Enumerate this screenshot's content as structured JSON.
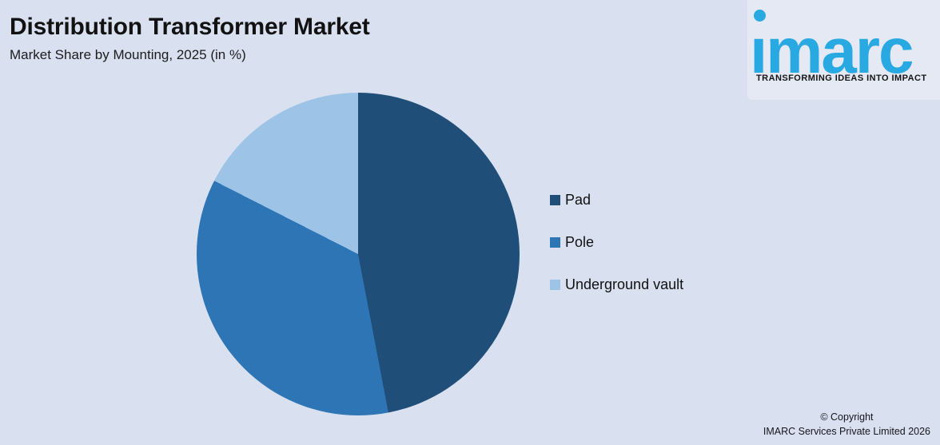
{
  "page": {
    "background": "#D9E1F0",
    "logo_panel_background": "#E4E9F4"
  },
  "header": {
    "title": "Distribution Transformer Market",
    "subtitle": "Market Share by Mounting, 2025 (in %)"
  },
  "logo": {
    "brand": "imarc",
    "brand_display": "ımarc",
    "tagline": "TRANSFORMING IDEAS INTO IMPACT",
    "brand_color": "#29A9E2"
  },
  "chart_data": {
    "type": "pie",
    "title": "Distribution Transformer Market",
    "subtitle": "Market Share by Mounting, 2025 (in %)",
    "unit": "%",
    "start_angle_deg": 0,
    "direction": "clockwise",
    "labels_shown": false,
    "legend_position": "right",
    "slices": [
      {
        "label": "Pad",
        "value": 47.0,
        "color": "#1F4E79"
      },
      {
        "label": "Pole",
        "value": 35.5,
        "color": "#2E75B6"
      },
      {
        "label": "Underground vault",
        "value": 17.5,
        "color": "#9DC3E6"
      }
    ]
  },
  "footer": {
    "line1": "© Copyright",
    "line2": "IMARC Services Private Limited 2026"
  }
}
